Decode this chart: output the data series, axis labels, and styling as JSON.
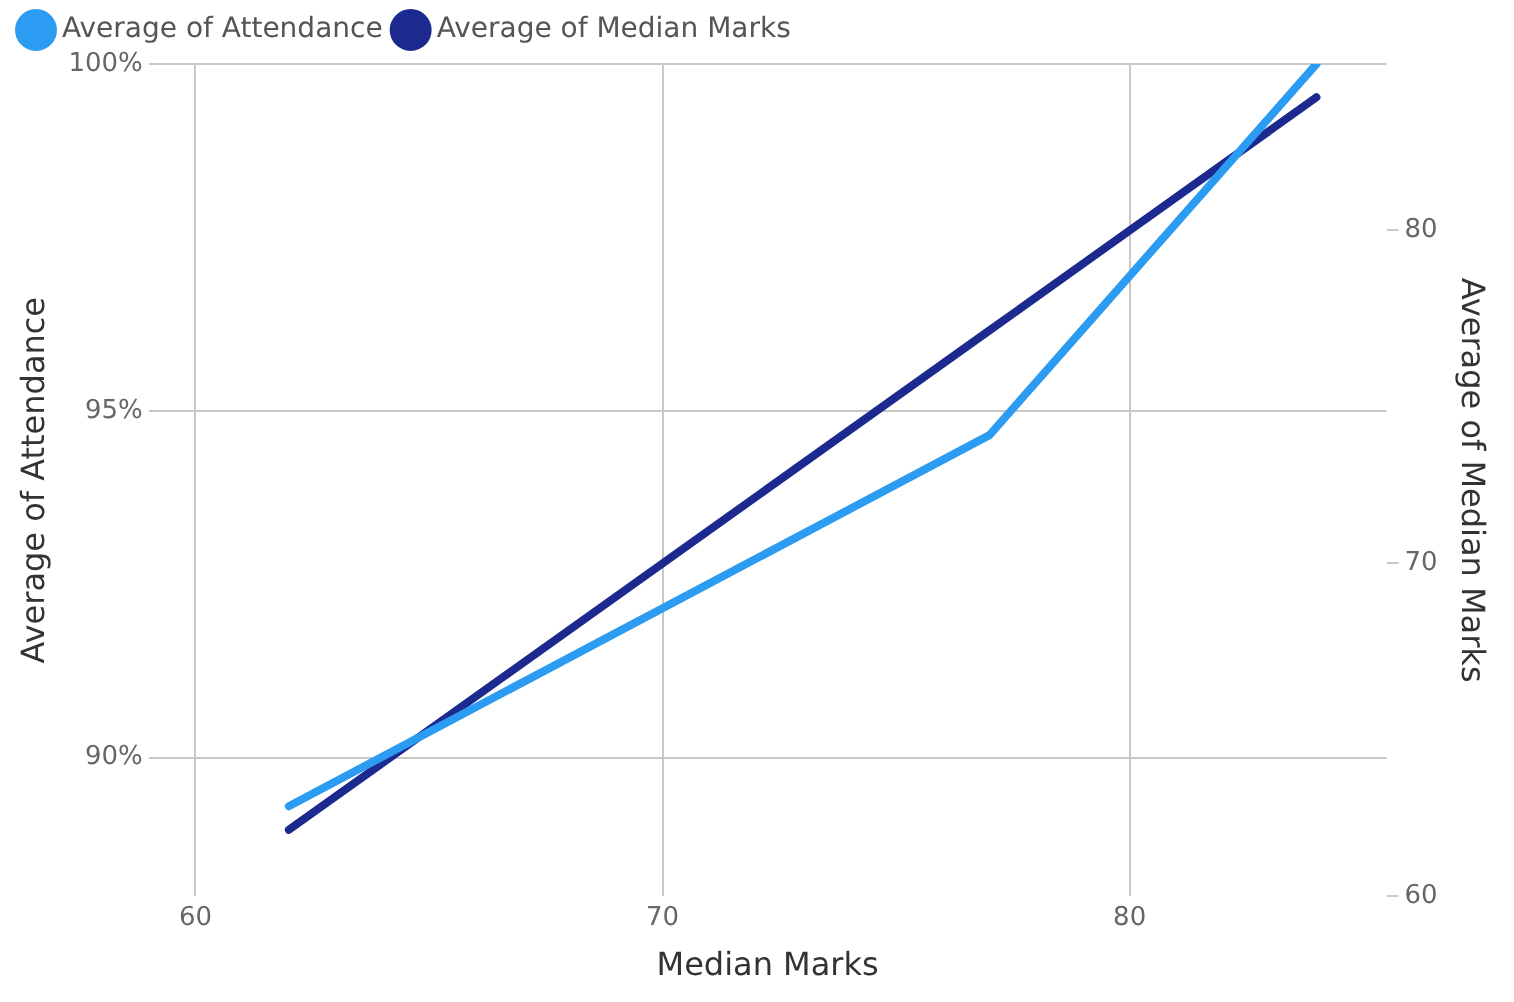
{
  "chart_data": {
    "type": "line",
    "xlabel": "Median Marks",
    "ylabel": "Average of Attendance",
    "y2label": "Average of Median Marks",
    "x": [
      62,
      77,
      84
    ],
    "series": [
      {
        "name": "Average of Attendance",
        "color": "#2b9cf2",
        "values": [
          89.3,
          94.65,
          100
        ]
      },
      {
        "name": "Average of Median Marks",
        "color": "#1c2a8f",
        "values": [
          62,
          77,
          84
        ],
        "axis": "y2"
      }
    ],
    "xlim": [
      59,
      85.5
    ],
    "xticks": [
      60,
      70,
      80
    ],
    "ylim": [
      88,
      100
    ],
    "yticks": [
      {
        "value": 90,
        "label": "90%"
      },
      {
        "value": 95,
        "label": "95%"
      },
      {
        "value": 100,
        "label": "100%"
      }
    ],
    "y2lim": [
      60,
      85
    ],
    "y2ticks": [
      60,
      70,
      80
    ],
    "grid": true,
    "legend": "top left",
    "line_style": "solid"
  }
}
